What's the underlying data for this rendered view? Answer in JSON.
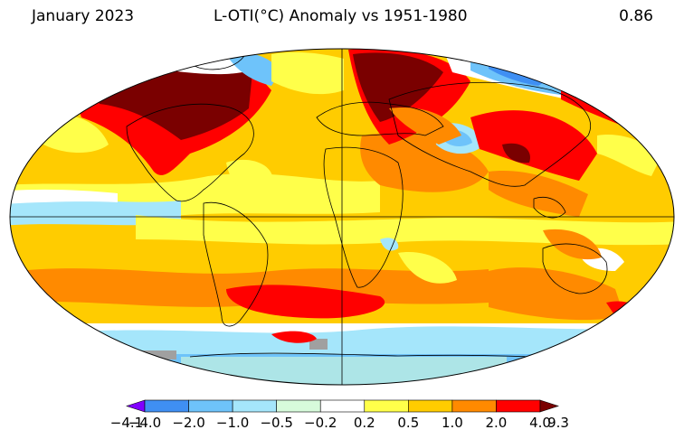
{
  "header": {
    "period": "January 2023",
    "title": "L-OTI(°C) Anomaly vs 1951-1980",
    "global_mean": "0.86"
  },
  "legend": {
    "bins": [
      {
        "color": "#8000ff"
      },
      {
        "color": "#3f8ff3"
      },
      {
        "color": "#6ec3fa"
      },
      {
        "color": "#a5e6fb"
      },
      {
        "color": "#d7fbdb"
      },
      {
        "color": "#ffffff"
      },
      {
        "color": "#ffff4a"
      },
      {
        "color": "#ffcc00"
      },
      {
        "color": "#ff8a00"
      },
      {
        "color": "#ff0000"
      },
      {
        "color": "#7a0000"
      }
    ],
    "ticks": [
      "−4.1",
      "−4.0",
      "−2.0",
      "−1.0",
      "−0.5",
      "−0.2",
      "0.2",
      "0.5",
      "1.0",
      "2.0",
      "4.0",
      "9.3"
    ]
  }
}
